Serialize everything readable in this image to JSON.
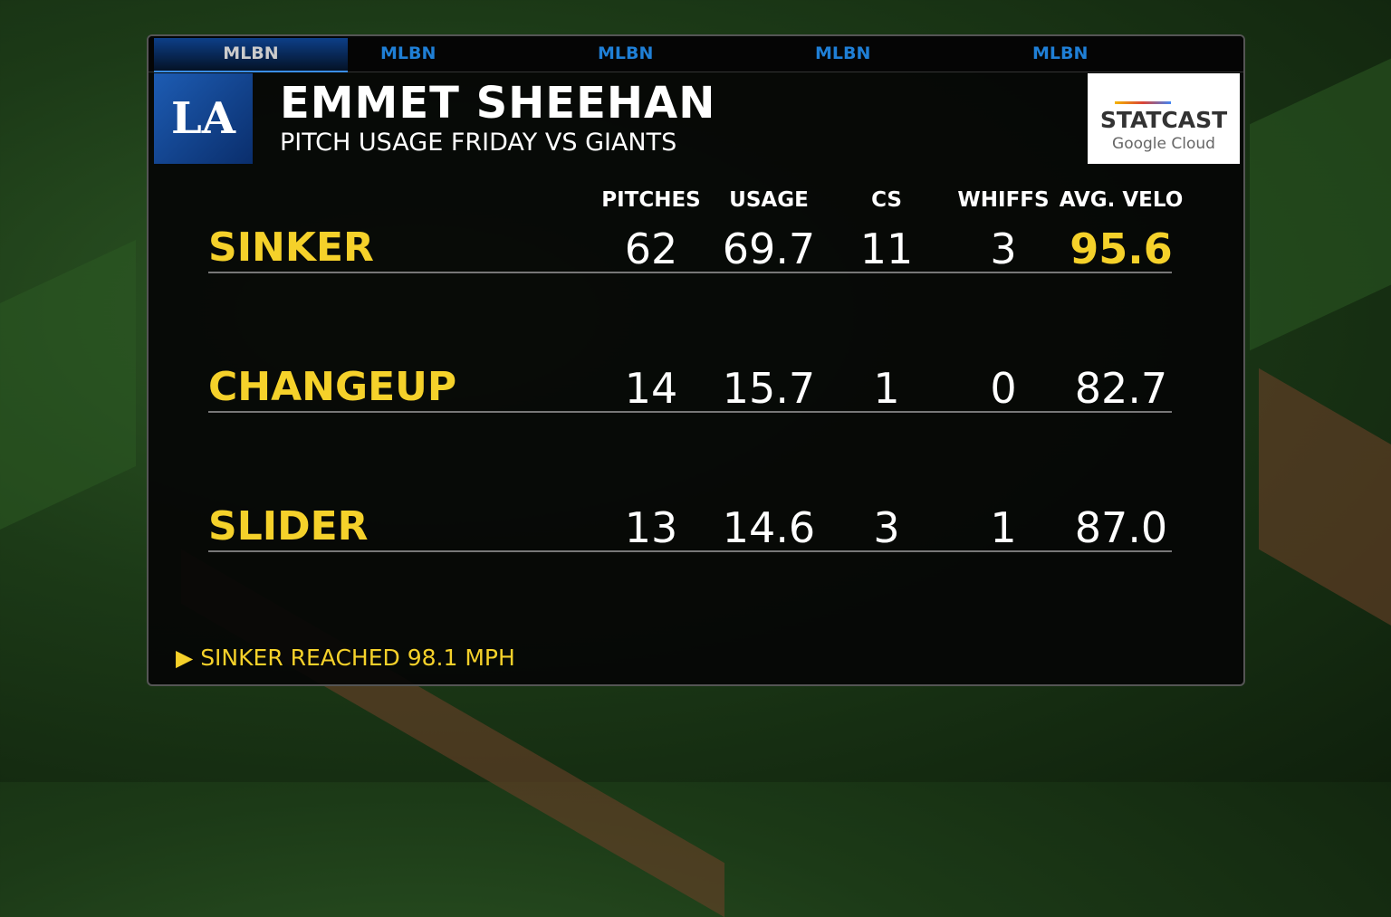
{
  "tabs": [
    "MLBN",
    "MLBN",
    "MLBN",
    "MLBN",
    "MLBN"
  ],
  "team_logo": "LA",
  "player_name": "EMMET SHEEHAN",
  "subtitle": "PITCH USAGE FRIDAY VS GIANTS",
  "sponsor": {
    "name": "STATCAST",
    "powered_by": "Google Cloud"
  },
  "columns": [
    "PITCHES",
    "USAGE",
    "CS",
    "WHIFFS",
    "AVG. VELO"
  ],
  "rows": [
    {
      "pitch": "SINKER",
      "values": [
        "62",
        "69.7",
        "11",
        "3",
        "95.6"
      ],
      "highlight_velo": true
    },
    {
      "pitch": "CHANGEUP",
      "values": [
        "14",
        "15.7",
        "1",
        "0",
        "82.7"
      ]
    },
    {
      "pitch": "SLIDER",
      "values": [
        "13",
        "14.6",
        "3",
        "1",
        "87.0"
      ]
    }
  ],
  "note": "SINKER REACHED 98.1 MPH",
  "colors": {
    "accent": "#f5d12a",
    "team_blue": "#1d5cb3"
  }
}
